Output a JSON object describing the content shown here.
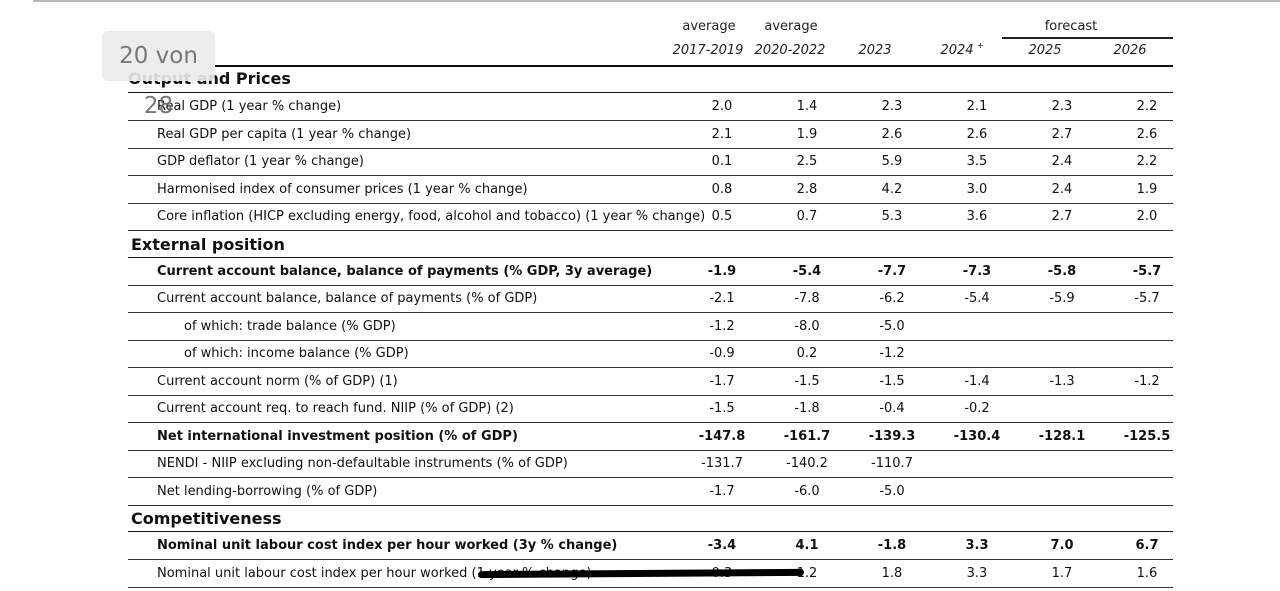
{
  "page_indicator": "20 von 28",
  "header": {
    "top_labels": [
      "average",
      "average",
      "forecast"
    ],
    "years": [
      "2017-2019",
      "2020-2022",
      "2023",
      "2024",
      "2025",
      "2026"
    ],
    "superscript": "+"
  },
  "sections": [
    {
      "title": "Output and Prices",
      "rows": [
        {
          "label": "Real GDP (1 year % change)",
          "values": [
            "2.0",
            "1.4",
            "2.3",
            "2.1",
            "2.3",
            "2.2"
          ]
        },
        {
          "label": "Real GDP per capita (1 year % change)",
          "values": [
            "2.1",
            "1.9",
            "2.6",
            "2.6",
            "2.7",
            "2.6"
          ]
        },
        {
          "label": "GDP deflator (1 year % change)",
          "values": [
            "0.1",
            "2.5",
            "5.9",
            "3.5",
            "2.4",
            "2.2"
          ]
        },
        {
          "label": "Harmonised index of consumer prices (1 year % change)",
          "values": [
            "0.8",
            "2.8",
            "4.2",
            "3.0",
            "2.4",
            "1.9"
          ]
        },
        {
          "label": "Core inflation (HICP excluding energy, food, alcohol and tobacco) (1 year % change)",
          "values": [
            "0.5",
            "0.7",
            "5.3",
            "3.6",
            "2.7",
            "2.0"
          ]
        }
      ]
    },
    {
      "title": "External position",
      "rows": [
        {
          "label": "Current account balance, balance of payments (% GDP, 3y average)",
          "bold": true,
          "values": [
            "-1.9",
            "-5.4",
            "-7.7",
            "-7.3",
            "-5.8",
            "-5.7"
          ]
        },
        {
          "label": "Current account balance, balance of payments (% of GDP)",
          "values": [
            "-2.1",
            "-7.8",
            "-6.2",
            "-5.4",
            "-5.9",
            "-5.7"
          ]
        },
        {
          "label": "of which: trade balance (% GDP)",
          "indent": true,
          "values": [
            "-1.2",
            "-8.0",
            "-5.0",
            "",
            "",
            ""
          ]
        },
        {
          "label": "of which: income balance (% GDP)",
          "indent": true,
          "values": [
            "-0.9",
            "0.2",
            "-1.2",
            "",
            "",
            ""
          ]
        },
        {
          "label": "Current account norm (% of GDP) (1)",
          "values": [
            "-1.7",
            "-1.5",
            "-1.5",
            "-1.4",
            "-1.3",
            "-1.2"
          ]
        },
        {
          "label": "Current account req. to reach fund. NIIP (% of GDP) (2)",
          "values": [
            "-1.5",
            "-1.8",
            "-0.4",
            "-0.2",
            "",
            ""
          ]
        },
        {
          "label": "Net international investment position (% of GDP)",
          "bold": true,
          "values": [
            "-147.8",
            "-161.7",
            "-139.3",
            "-130.4",
            "-128.1",
            "-125.5"
          ]
        },
        {
          "label": "NENDI - NIIP excluding non-defaultable instruments (% of GDP)",
          "values": [
            "-131.7",
            "-140.2",
            "-110.7",
            "",
            "",
            ""
          ]
        },
        {
          "label": "Net lending-borrowing (% of GDP)",
          "values": [
            "-1.7",
            "-6.0",
            "-5.0",
            "",
            "",
            ""
          ]
        }
      ]
    },
    {
      "title": "Competitiveness",
      "rows": [
        {
          "label": "Nominal unit labour cost index per hour worked (3y % change)",
          "bold": true,
          "values": [
            "-3.4",
            "4.1",
            "-1.8",
            "3.3",
            "7.0",
            "6.7"
          ]
        },
        {
          "label": "Nominal unit labour cost index per hour worked (1 year % change)",
          "values": [
            "0.3",
            "1.2",
            "1.8",
            "3.3",
            "1.7",
            "1.6"
          ]
        }
      ]
    }
  ]
}
